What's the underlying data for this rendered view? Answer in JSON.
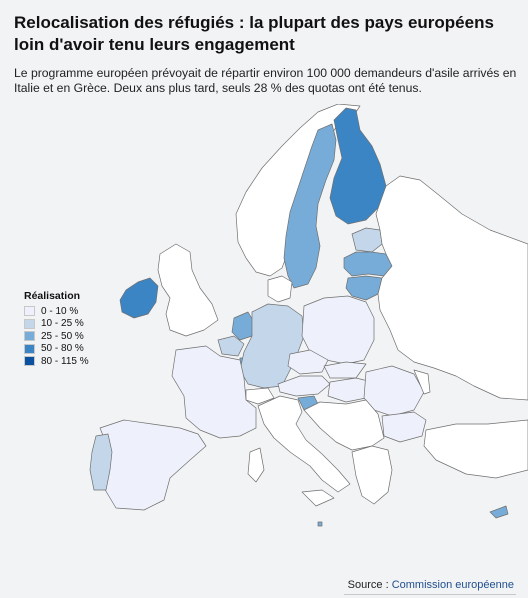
{
  "title": "Relocalisation des réfugiés : la plupart des pays européens loin d'avoir tenu leurs engagement",
  "subtitle": "Le programme européen prévoyait de répartir environ 100 000 demandeurs d'asile arrivés en Italie et en Grèce. Deux ans plus tard, seuls 28 % des quotas ont été tenus.",
  "legend": {
    "title": "Réalisation",
    "items": [
      {
        "label": "0 - 10 %",
        "color": "#eef1fb"
      },
      {
        "label": "10 - 25 %",
        "color": "#c4d7ea"
      },
      {
        "label": "25 - 50 %",
        "color": "#76acd7"
      },
      {
        "label": "50 - 80 %",
        "color": "#3b85c4"
      },
      {
        "label": "80 - 115 %",
        "color": "#0b519f"
      }
    ]
  },
  "colors": {
    "no_data": "#ffffff",
    "border": "#6f6f6f",
    "sea": "#f2f3f5"
  },
  "source": {
    "prefix": "Source : ",
    "link": "Commission européenne"
  }
}
